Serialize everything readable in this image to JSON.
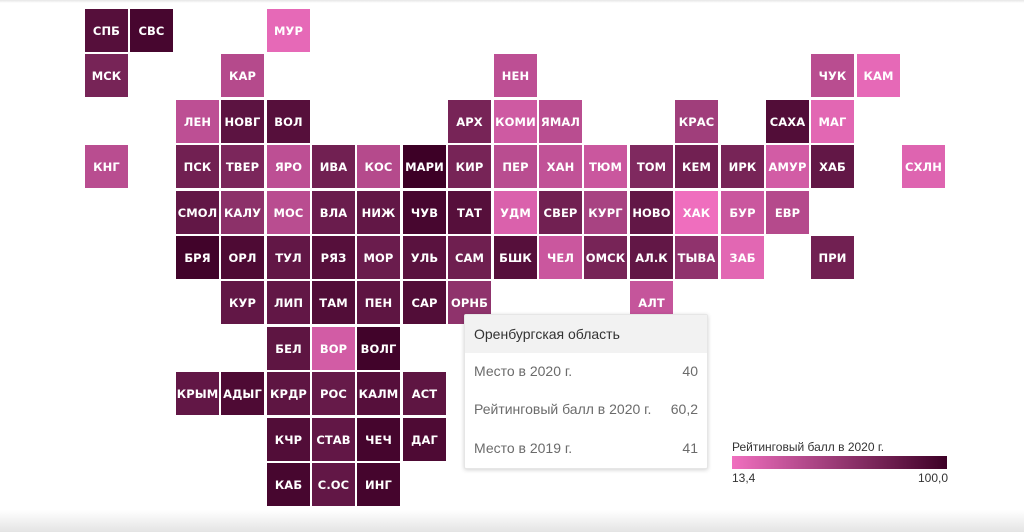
{
  "chart_data": {
    "type": "heatmap",
    "colorscale": {
      "from": "#f06fbf",
      "to": "#3d0026"
    },
    "legend": {
      "title": "Рейтинговый балл в 2020 г.",
      "min_label": "13,4",
      "max_label": "100,0",
      "min": 13.4,
      "max": 100.0
    },
    "tiles": [
      {
        "label": "СПБ",
        "col": 0,
        "row": 0,
        "score": 88
      },
      {
        "label": "СВС",
        "col": 1,
        "row": 0,
        "score": 95
      },
      {
        "label": "МУР",
        "col": 4,
        "row": 0,
        "score": 18
      },
      {
        "label": "МСК",
        "col": 0,
        "row": 1,
        "score": 72
      },
      {
        "label": "КАР",
        "col": 3,
        "row": 1,
        "score": 42
      },
      {
        "label": "НЕН",
        "col": 9,
        "row": 1,
        "score": 38
      },
      {
        "label": "ЧУК",
        "col": 16,
        "row": 1,
        "score": 40
      },
      {
        "label": "КАМ",
        "col": 17,
        "row": 1,
        "score": 18
      },
      {
        "label": "ЛЕН",
        "col": 2,
        "row": 2,
        "score": 38
      },
      {
        "label": "НОВГ",
        "col": 3,
        "row": 2,
        "score": 85
      },
      {
        "label": "ВОЛ",
        "col": 4,
        "row": 2,
        "score": 88
      },
      {
        "label": "АРХ",
        "col": 8,
        "row": 2,
        "score": 72
      },
      {
        "label": "КОМИ",
        "col": 9,
        "row": 2,
        "score": 30
      },
      {
        "label": "ЯМАЛ",
        "col": 10,
        "row": 2,
        "score": 40
      },
      {
        "label": "КРАС",
        "col": 13,
        "row": 2,
        "score": 52
      },
      {
        "label": "САХА",
        "col": 15,
        "row": 2,
        "score": 90
      },
      {
        "label": "МАГ",
        "col": 16,
        "row": 2,
        "score": 20
      },
      {
        "label": "КНГ",
        "col": 0,
        "row": 3,
        "score": 40
      },
      {
        "label": "ПСК",
        "col": 2,
        "row": 3,
        "score": 75
      },
      {
        "label": "ТВЕР",
        "col": 3,
        "row": 3,
        "score": 70
      },
      {
        "label": "ЯРО",
        "col": 4,
        "row": 3,
        "score": 38
      },
      {
        "label": "ИВА",
        "col": 5,
        "row": 3,
        "score": 75
      },
      {
        "label": "КОС",
        "col": 6,
        "row": 3,
        "score": 42
      },
      {
        "label": "МАРИ",
        "col": 7,
        "row": 3,
        "score": 100
      },
      {
        "label": "КИР",
        "col": 8,
        "row": 3,
        "score": 72
      },
      {
        "label": "ПЕР",
        "col": 9,
        "row": 3,
        "score": 40
      },
      {
        "label": "ХАН",
        "col": 10,
        "row": 3,
        "score": 36
      },
      {
        "label": "ТЮМ",
        "col": 11,
        "row": 3,
        "score": 32
      },
      {
        "label": "ТОМ",
        "col": 12,
        "row": 3,
        "score": 68
      },
      {
        "label": "КЕМ",
        "col": 13,
        "row": 3,
        "score": 75
      },
      {
        "label": "ИРК",
        "col": 14,
        "row": 3,
        "score": 72
      },
      {
        "label": "АМУР",
        "col": 15,
        "row": 3,
        "score": 28
      },
      {
        "label": "ХАБ",
        "col": 16,
        "row": 3,
        "score": 82
      },
      {
        "label": "СХЛН",
        "col": 18,
        "row": 3,
        "score": 22
      },
      {
        "label": "СМОЛ",
        "col": 2,
        "row": 4,
        "score": 82
      },
      {
        "label": "КАЛУ",
        "col": 3,
        "row": 4,
        "score": 62
      },
      {
        "label": "МОС",
        "col": 4,
        "row": 4,
        "score": 40
      },
      {
        "label": "ВЛА",
        "col": 5,
        "row": 4,
        "score": 78
      },
      {
        "label": "НИЖ",
        "col": 6,
        "row": 4,
        "score": 82
      },
      {
        "label": "ЧУВ",
        "col": 7,
        "row": 4,
        "score": 95
      },
      {
        "label": "ТАТ",
        "col": 8,
        "row": 4,
        "score": 88
      },
      {
        "label": "УДМ",
        "col": 9,
        "row": 4,
        "score": 24
      },
      {
        "label": "СВЕР",
        "col": 10,
        "row": 4,
        "score": 75
      },
      {
        "label": "КУРГ",
        "col": 11,
        "row": 4,
        "score": 48
      },
      {
        "label": "НОВО",
        "col": 12,
        "row": 4,
        "score": 82
      },
      {
        "label": "ХАК",
        "col": 13,
        "row": 4,
        "score": 14
      },
      {
        "label": "БУР",
        "col": 14,
        "row": 4,
        "score": 32
      },
      {
        "label": "ЕВР",
        "col": 15,
        "row": 4,
        "score": 42
      },
      {
        "label": "БРЯ",
        "col": 2,
        "row": 5,
        "score": 98
      },
      {
        "label": "ОРЛ",
        "col": 3,
        "row": 5,
        "score": 92
      },
      {
        "label": "ТУЛ",
        "col": 4,
        "row": 5,
        "score": 82
      },
      {
        "label": "РЯЗ",
        "col": 5,
        "row": 5,
        "score": 88
      },
      {
        "label": "МОР",
        "col": 6,
        "row": 5,
        "score": 78
      },
      {
        "label": "УЛЬ",
        "col": 7,
        "row": 5,
        "score": 86
      },
      {
        "label": "САМ",
        "col": 8,
        "row": 5,
        "score": 76
      },
      {
        "label": "БШК",
        "col": 9,
        "row": 5,
        "score": 88
      },
      {
        "label": "ЧЕЛ",
        "col": 10,
        "row": 5,
        "score": 32
      },
      {
        "label": "ОМСК",
        "col": 11,
        "row": 5,
        "score": 72
      },
      {
        "label": "АЛ.К",
        "col": 12,
        "row": 5,
        "score": 82
      },
      {
        "label": "ТЫВА",
        "col": 13,
        "row": 5,
        "score": 60
      },
      {
        "label": "ЗАБ",
        "col": 14,
        "row": 5,
        "score": 20
      },
      {
        "label": "ПРИ",
        "col": 16,
        "row": 5,
        "score": 75
      },
      {
        "label": "КУР",
        "col": 3,
        "row": 6,
        "score": 82
      },
      {
        "label": "ЛИП",
        "col": 4,
        "row": 6,
        "score": 82
      },
      {
        "label": "ТАМ",
        "col": 5,
        "row": 6,
        "score": 90
      },
      {
        "label": "ПЕН",
        "col": 6,
        "row": 6,
        "score": 84
      },
      {
        "label": "САР",
        "col": 7,
        "row": 6,
        "score": 90
      },
      {
        "label": "ОРНБ",
        "col": 8,
        "row": 6,
        "score": 60.2
      },
      {
        "label": "АЛТ",
        "col": 12,
        "row": 6,
        "score": 34
      },
      {
        "label": "БЕЛ",
        "col": 4,
        "row": 7,
        "score": 84
      },
      {
        "label": "ВОР",
        "col": 5,
        "row": 7,
        "score": 28
      },
      {
        "label": "ВОЛГ",
        "col": 6,
        "row": 7,
        "score": 98
      },
      {
        "label": "КРЫМ",
        "col": 2,
        "row": 8,
        "score": 82
      },
      {
        "label": "АДЫГ",
        "col": 3,
        "row": 8,
        "score": 92
      },
      {
        "label": "КРДР",
        "col": 4,
        "row": 8,
        "score": 84
      },
      {
        "label": "РОС",
        "col": 5,
        "row": 8,
        "score": 80
      },
      {
        "label": "КАЛМ",
        "col": 6,
        "row": 8,
        "score": 88
      },
      {
        "label": "АСТ",
        "col": 7,
        "row": 8,
        "score": 84
      },
      {
        "label": "КЧР",
        "col": 4,
        "row": 9,
        "score": 90
      },
      {
        "label": "СТАВ",
        "col": 5,
        "row": 9,
        "score": 82
      },
      {
        "label": "ЧЕЧ",
        "col": 6,
        "row": 9,
        "score": 96
      },
      {
        "label": "ДАГ",
        "col": 7,
        "row": 9,
        "score": 92
      },
      {
        "label": "КАБ",
        "col": 4,
        "row": 10,
        "score": 95
      },
      {
        "label": "С.ОС",
        "col": 5,
        "row": 10,
        "score": 82
      },
      {
        "label": "ИНГ",
        "col": 6,
        "row": 10,
        "score": 96
      }
    ]
  },
  "tooltip": {
    "title": "Оренбургская область",
    "rows": [
      {
        "label": "Место в 2020 г.",
        "value": "40"
      },
      {
        "label": "Рейтинговый балл в 2020 г.",
        "value": "60,2"
      },
      {
        "label": "Место в 2019 г.",
        "value": "41"
      }
    ]
  }
}
